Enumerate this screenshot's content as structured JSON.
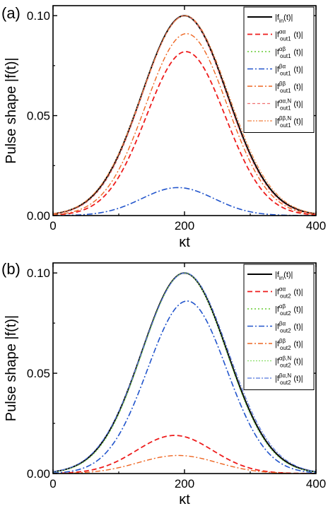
{
  "chart_data": [
    {
      "type": "line",
      "panel_label": "(a)",
      "xlabel": "κt",
      "ylabel": "Pulse shape |f(t)|",
      "xlim": [
        0,
        400
      ],
      "ylim": [
        0,
        0.105
      ],
      "x_ticks": [
        0,
        200,
        400
      ],
      "y_ticks": [
        0.0,
        0.05,
        0.1
      ],
      "x_tick_labels": [
        "0",
        "200",
        "400"
      ],
      "y_tick_labels": [
        "0.00",
        "0.05",
        "0.10"
      ],
      "legend_position": "top-right",
      "series": [
        {
          "name": "|f_in(t)|",
          "legend": {
            "base": "|f",
            "sub": "in",
            "sup": "",
            "tail": "(t)|"
          },
          "color": "#000000",
          "dash": "",
          "width": 2.0,
          "peak_time": 200,
          "amplitude": 0.1,
          "sigma": 65
        },
        {
          "name": "|f_out1^αα(t)|",
          "legend": {
            "base": "|f",
            "sub": "out1",
            "sup": "αα",
            "tail": "(t)|"
          },
          "color": "#ee1c1c",
          "dash": "7,4",
          "width": 1.8,
          "peak_time": 202,
          "amplitude": 0.082,
          "sigma": 60
        },
        {
          "name": "|f_out1^αβ(t)|",
          "legend": {
            "base": "|f",
            "sub": "out1",
            "sup": "αβ",
            "tail": "(t)|"
          },
          "color": "#66cc33",
          "dash": "2,3",
          "width": 1.6,
          "peak_time": 200,
          "amplitude": 0.0,
          "sigma": 60
        },
        {
          "name": "|f_out1^βα(t)|",
          "legend": {
            "base": "|f",
            "sub": "out1",
            "sup": "βα",
            "tail": "(t)|"
          },
          "color": "#2255cc",
          "dash": "8,3,2,3",
          "width": 1.6,
          "peak_time": 190,
          "amplitude": 0.014,
          "sigma": 55
        },
        {
          "name": "|f_out1^ββ(t)|",
          "legend": {
            "base": "|f",
            "sub": "out1",
            "sup": "ββ",
            "tail": "(t)|"
          },
          "color": "#ee6622",
          "dash": "7,3,2,3",
          "width": 1.4,
          "peak_time": 203,
          "amplitude": 0.091,
          "sigma": 62
        },
        {
          "name": "|f_out1^αα,N(t)|",
          "legend": {
            "base": "|f",
            "sub": "out1",
            "sup": "αα,N",
            "tail": "(t)|"
          },
          "color": "#f07070",
          "dash": "4,3",
          "width": 1.2,
          "peak_time": 200,
          "amplitude": 0.1,
          "sigma": 64
        },
        {
          "name": "|f_out1^ββ,N(t)|",
          "legend": {
            "base": "|f",
            "sub": "out1",
            "sup": "ββ,N",
            "tail": "(t)|"
          },
          "color": "#f08040",
          "dash": "6,2,2,2,2,2",
          "width": 1.2,
          "peak_time": 201,
          "amplitude": 0.1,
          "sigma": 66
        }
      ]
    },
    {
      "type": "line",
      "panel_label": "(b)",
      "xlabel": "κt",
      "ylabel": "Pulse shape |f(t)|",
      "xlim": [
        0,
        400
      ],
      "ylim": [
        0,
        0.105
      ],
      "x_ticks": [
        0,
        200,
        400
      ],
      "y_ticks": [
        0.0,
        0.05,
        0.1
      ],
      "x_tick_labels": [
        "0",
        "200",
        "400"
      ],
      "y_tick_labels": [
        "0.00",
        "0.05",
        "0.10"
      ],
      "legend_position": "top-right",
      "series": [
        {
          "name": "|f_in(t)|",
          "legend": {
            "base": "|f",
            "sub": "in",
            "sup": "",
            "tail": "(t)|"
          },
          "color": "#000000",
          "dash": "",
          "width": 2.0,
          "peak_time": 200,
          "amplitude": 0.1,
          "sigma": 65
        },
        {
          "name": "|f_out2^αα(t)|",
          "legend": {
            "base": "|f",
            "sub": "out2",
            "sup": "αα",
            "tail": "(t)|"
          },
          "color": "#ee1c1c",
          "dash": "7,4",
          "width": 1.8,
          "peak_time": 185,
          "amplitude": 0.019,
          "sigma": 58
        },
        {
          "name": "|f_out2^αβ(t)|",
          "legend": {
            "base": "|f",
            "sub": "out2",
            "sup": "αβ",
            "tail": "(t)|"
          },
          "color": "#66cc33",
          "dash": "2,3",
          "width": 1.6,
          "peak_time": 200,
          "amplitude": 0.0,
          "sigma": 60
        },
        {
          "name": "|f_out2^βα(t)|",
          "legend": {
            "base": "|f",
            "sub": "out2",
            "sup": "βα",
            "tail": "(t)|"
          },
          "color": "#2255cc",
          "dash": "8,3,2,3",
          "width": 1.6,
          "peak_time": 204,
          "amplitude": 0.086,
          "sigma": 60
        },
        {
          "name": "|f_out2^ββ(t)|",
          "legend": {
            "base": "|f",
            "sub": "out2",
            "sup": "ββ",
            "tail": "(t)|"
          },
          "color": "#ee6622",
          "dash": "7,3,2,3",
          "width": 1.4,
          "peak_time": 190,
          "amplitude": 0.009,
          "sigma": 60
        },
        {
          "name": "|f_out2^αβ,N(t)|",
          "legend": {
            "base": "|f",
            "sub": "out2",
            "sup": "αβ,N",
            "tail": "(t)|"
          },
          "color": "#88dd66",
          "dash": "2,2",
          "width": 1.2,
          "peak_time": 200,
          "amplitude": 0.1,
          "sigma": 64
        },
        {
          "name": "|f_out2^βα,N(t)|",
          "legend": {
            "base": "|f",
            "sub": "out2",
            "sup": "βα,N",
            "tail": "(t)|"
          },
          "color": "#5577dd",
          "dash": "6,2,2,2",
          "width": 1.2,
          "peak_time": 201,
          "amplitude": 0.1,
          "sigma": 66
        }
      ]
    }
  ]
}
